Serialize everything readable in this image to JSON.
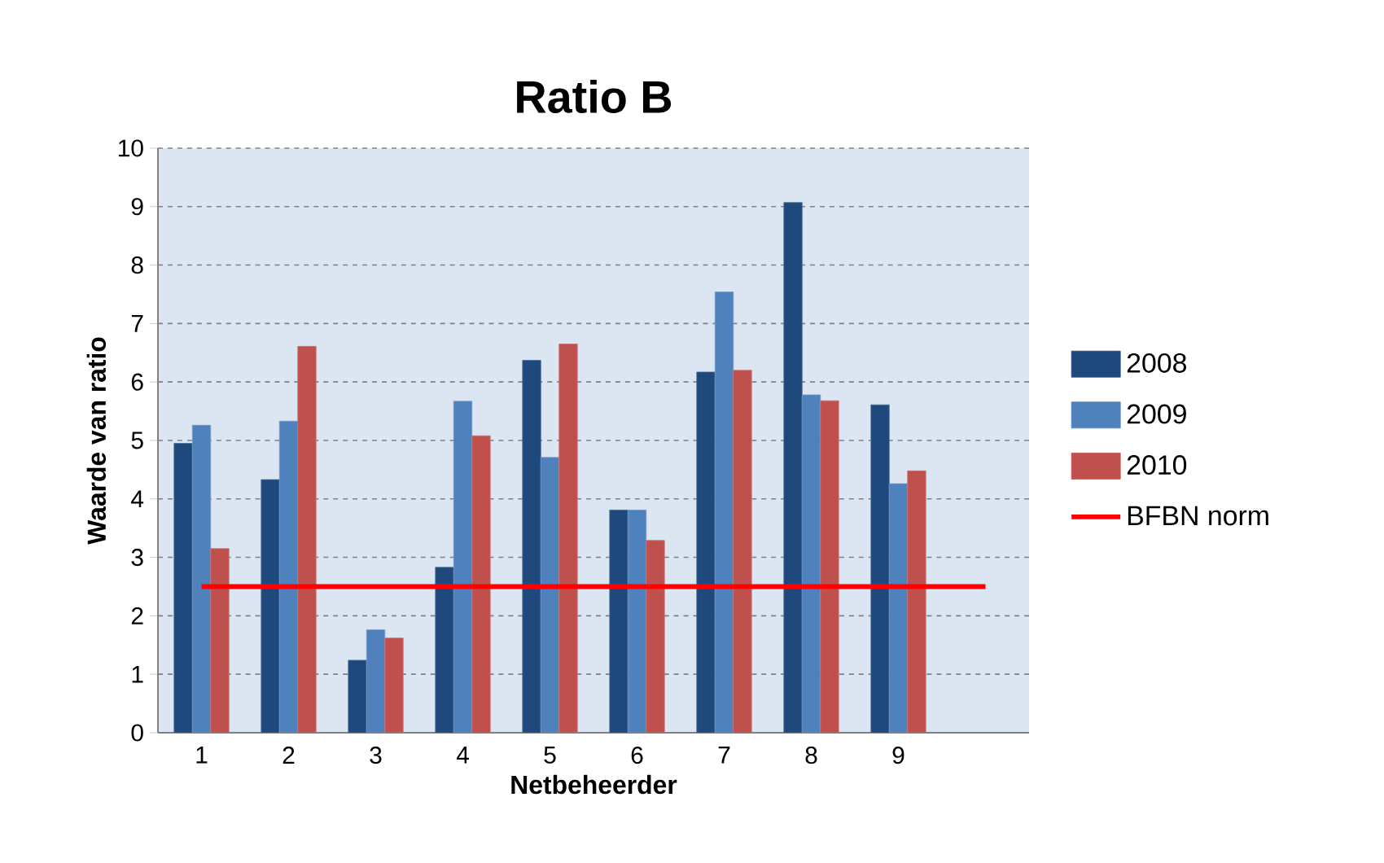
{
  "chart_data": {
    "type": "bar",
    "title": "Ratio B",
    "xlabel": "Netbeheerder",
    "ylabel": "Waarde van ratio",
    "categories": [
      "1",
      "2",
      "3",
      "4",
      "5",
      "6",
      "7",
      "8",
      "9",
      null
    ],
    "series": [
      {
        "name": "2008",
        "color": "#1f497d",
        "values": [
          4.95,
          4.33,
          1.24,
          2.83,
          6.37,
          3.81,
          6.17,
          9.07,
          5.61,
          null
        ]
      },
      {
        "name": "2009",
        "color": "#4f81bd",
        "values": [
          5.26,
          5.33,
          1.76,
          5.67,
          4.71,
          3.81,
          7.54,
          5.78,
          4.26,
          null
        ]
      },
      {
        "name": "2010",
        "color": "#c0504d",
        "values": [
          3.15,
          6.61,
          1.62,
          5.08,
          6.65,
          3.29,
          6.2,
          5.68,
          4.48,
          null
        ]
      },
      {
        "name": "BFBN norm",
        "type": "line",
        "color": "#ff0000",
        "values": [
          2.5,
          2.5,
          2.5,
          2.5,
          2.5,
          2.5,
          2.5,
          2.5,
          2.5,
          2.5
        ]
      }
    ],
    "ylim": [
      0,
      10
    ],
    "yticks": [
      0,
      1,
      2,
      3,
      4,
      5,
      6,
      7,
      8,
      9,
      10
    ],
    "grid": "y",
    "legend": "right",
    "marker": "none"
  }
}
